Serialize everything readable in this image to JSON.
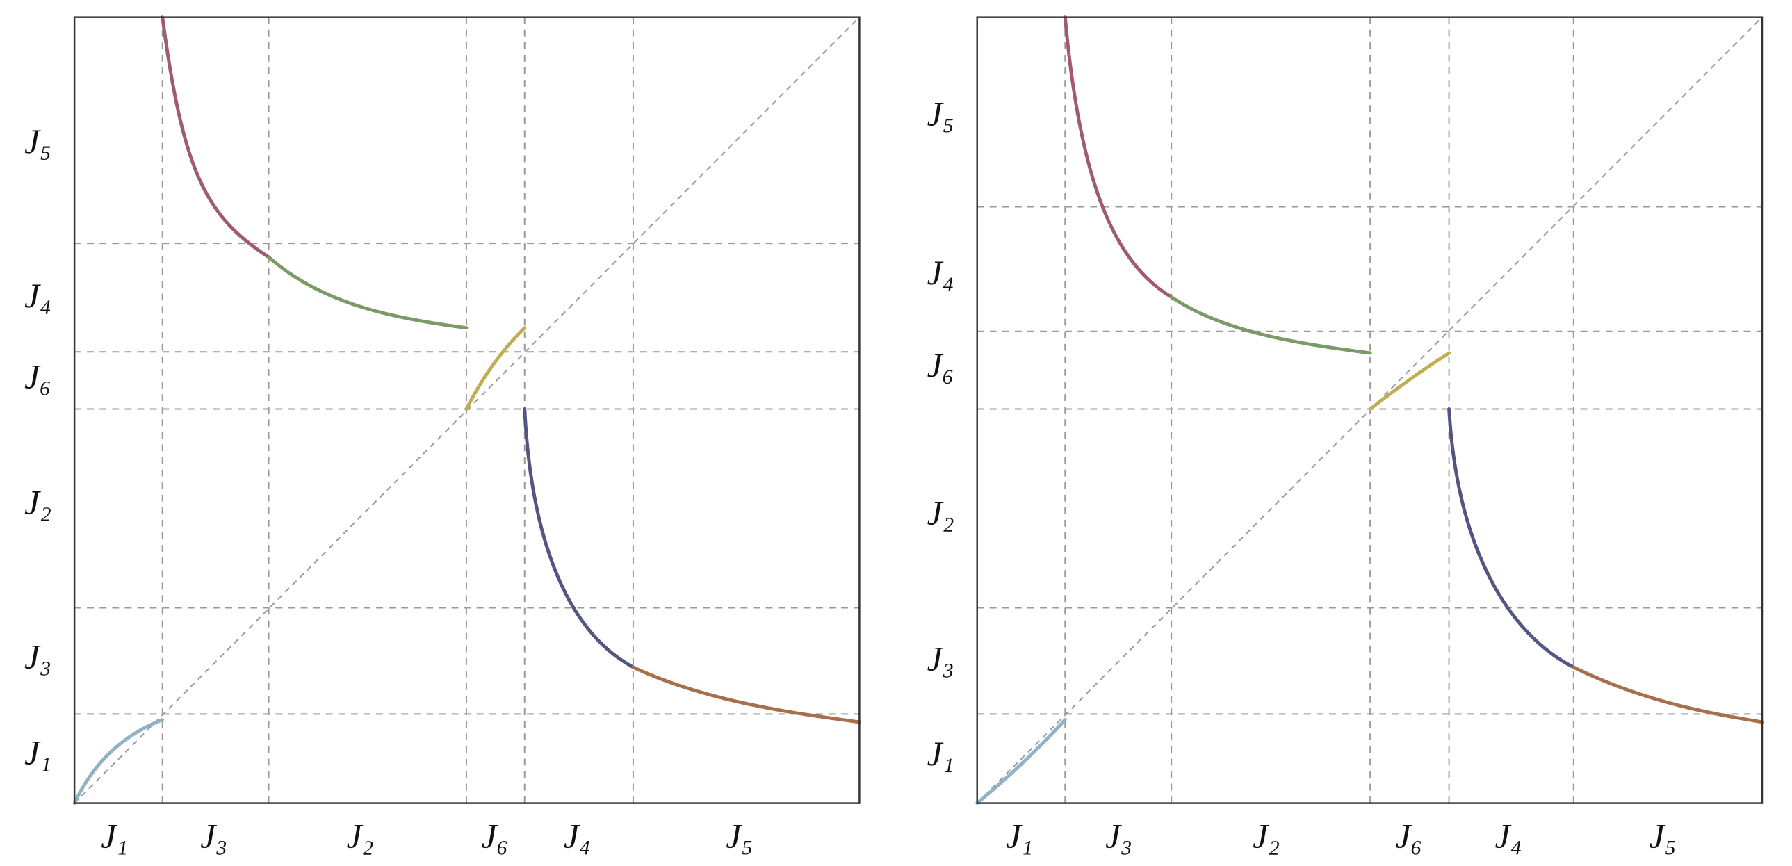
{
  "panels": [
    {
      "x_labels": [
        "J₁",
        "J₃",
        "J₂",
        "J₆",
        "J₄",
        "J₅"
      ],
      "y_labels": [
        "J₅",
        "J₄",
        "J₆",
        "J₂",
        "J₃",
        "J₁"
      ]
    },
    {
      "x_labels": [
        "J₁",
        "J₃",
        "J₂",
        "J₆",
        "J₄",
        "J₅"
      ],
      "y_labels": [
        "J₅",
        "J₄",
        "J₆",
        "J₂",
        "J₃",
        "J₁"
      ]
    }
  ]
}
